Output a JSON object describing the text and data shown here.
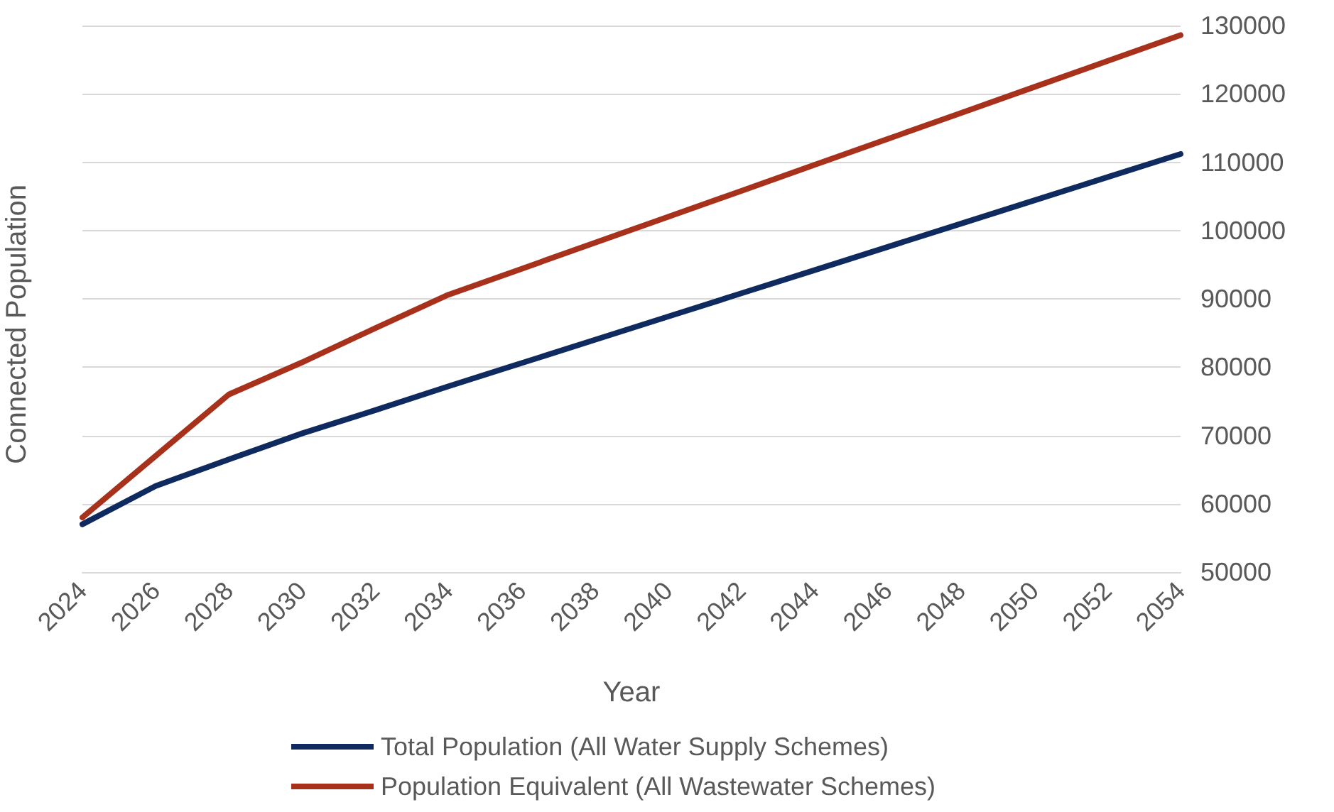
{
  "chart_data": {
    "type": "line",
    "xlabel": "Year",
    "ylabel": "Connected Population",
    "categories": [
      "2024",
      "2026",
      "2028",
      "2030",
      "2032",
      "2034",
      "2036",
      "2038",
      "2040",
      "2042",
      "2044",
      "2046",
      "2048",
      "2050",
      "2052",
      "2054"
    ],
    "series": [
      {
        "name": "Total Population (All Water Supply Schemes)",
        "color": "#0e2a5f",
        "values": [
          57000,
          62600,
          66500,
          70300,
          73700,
          77200,
          80600,
          84000,
          87400,
          90800,
          94200,
          97600,
          101000,
          104400,
          107800,
          111200
        ]
      },
      {
        "name": "Population Equivalent (All Wastewater Schemes)",
        "color": "#a8311c",
        "values": [
          58000,
          67000,
          76000,
          80700,
          85700,
          90600,
          94400,
          98200,
          102000,
          105800,
          109600,
          113400,
          117200,
          121000,
          124800,
          128600
        ]
      }
    ],
    "ylim": [
      50000,
      130000
    ],
    "yticks": [
      50000,
      60000,
      70000,
      80000,
      90000,
      100000,
      110000,
      120000,
      130000
    ],
    "grid": "y",
    "legend": "bottom",
    "marker": "none",
    "line_style": "solid"
  }
}
